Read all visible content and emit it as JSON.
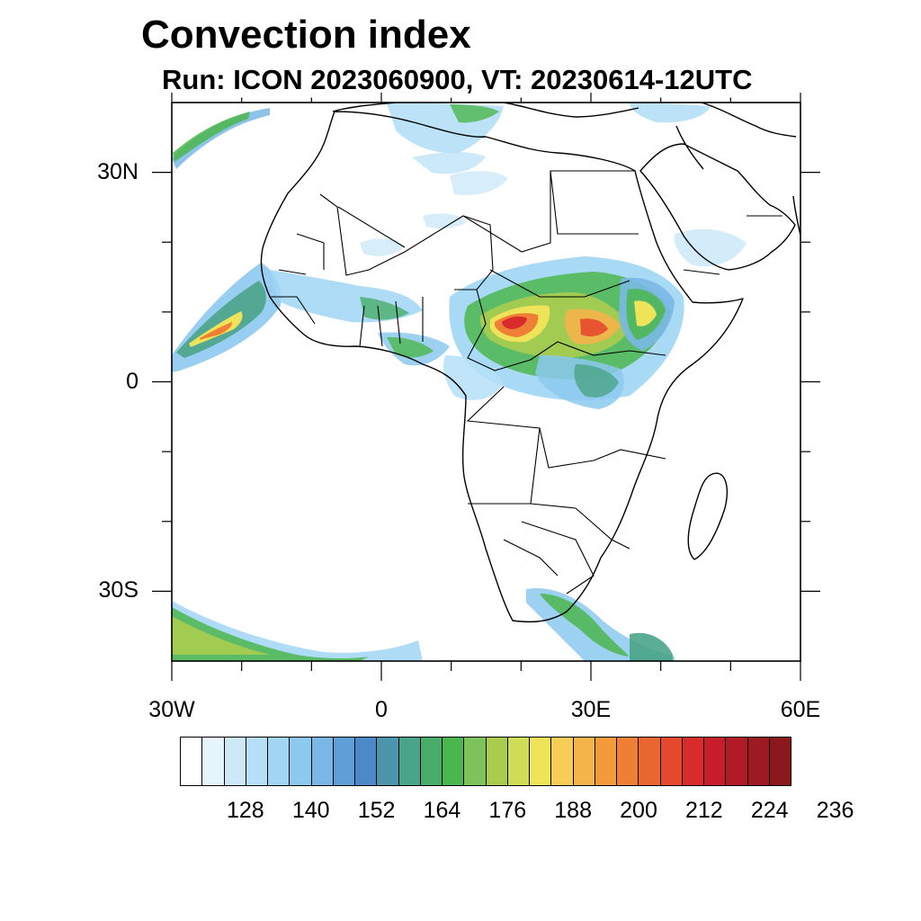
{
  "title": "Convection index",
  "subtitle": "Run: ICON 2023060900,  VT: 20230614-12UTC",
  "y_ticks": [
    "30N",
    "0",
    "30S"
  ],
  "x_ticks": [
    "30W",
    "0",
    "30E",
    "60E"
  ],
  "colorbar": {
    "labels": [
      "128",
      "140",
      "152",
      "164",
      "176",
      "188",
      "200",
      "212",
      "224",
      "236"
    ],
    "colors": [
      "#ffffff",
      "#e6f4fc",
      "#cde9f8",
      "#b6e0f7",
      "#a0d6f4",
      "#8cc9ef",
      "#79b8e6",
      "#5f9fd8",
      "#4c89c8",
      "#4b95ad",
      "#4aa487",
      "#49ad6a",
      "#4cb64e",
      "#7dc25a",
      "#a9cc4f",
      "#cedd55",
      "#eee359",
      "#f8cd55",
      "#f5b44a",
      "#f39b3b",
      "#ef7f35",
      "#ea6631",
      "#e4492e",
      "#d92a2c",
      "#c81d2a",
      "#b21a27",
      "#9d1a20",
      "#8a181c"
    ]
  },
  "map": {
    "extent": {
      "lon_min": -30,
      "lon_max": 60,
      "lat_min": -40,
      "lat_max": 40
    },
    "grid_lon": [
      -30,
      -20,
      -10,
      0,
      10,
      20,
      30,
      40,
      50,
      60
    ],
    "grid_lat": [
      -30,
      -20,
      -10,
      0,
      10,
      20,
      30
    ]
  }
}
